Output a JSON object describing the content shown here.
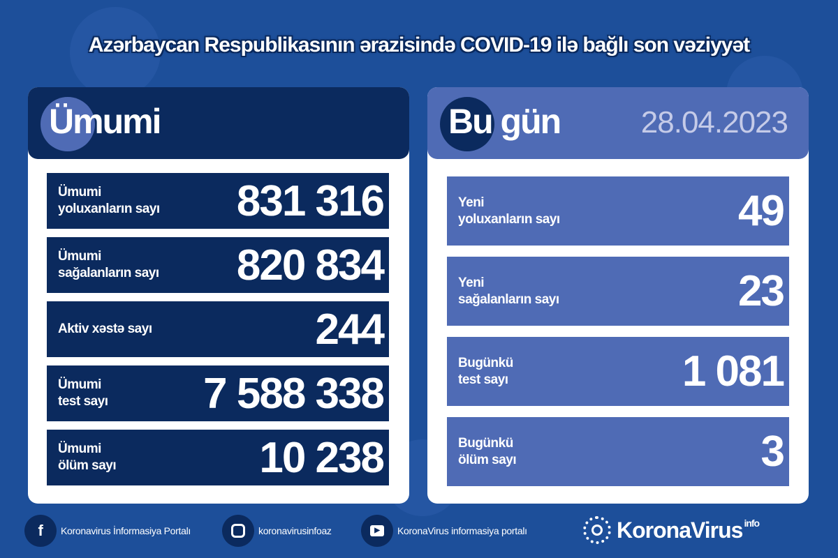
{
  "title": "Azərbaycan Respublikasının ərazisində COVID-19 ilə bağlı son vəziyyət",
  "colors": {
    "background": "#1d4f9a",
    "navy": "#0b2a5e",
    "accent": "#4f6bb5",
    "date": "#c5cbe8"
  },
  "total": {
    "heading": "Ümumi",
    "rows": [
      {
        "label1": "Ümumi",
        "label2": "yoluxanların sayı",
        "value": "831 316"
      },
      {
        "label1": "Ümumi",
        "label2": "sağalanların sayı",
        "value": "820 834"
      },
      {
        "label1": "Aktiv xəstə sayı",
        "label2": "",
        "value": "244"
      },
      {
        "label1": "Ümumi",
        "label2": "test sayı",
        "value": "7 588 338"
      },
      {
        "label1": "Ümumi",
        "label2": "ölüm sayı",
        "value": "10 238"
      }
    ]
  },
  "today": {
    "heading": "Bu gün",
    "date": "28.04.2023",
    "rows": [
      {
        "label1": "Yeni",
        "label2": "yoluxanların sayı",
        "value": "49"
      },
      {
        "label1": "Yeni",
        "label2": "sağalanların sayı",
        "value": "23"
      },
      {
        "label1": "Bugünkü",
        "label2": "test sayı",
        "value": "1 081"
      },
      {
        "label1": "Bugünkü",
        "label2": "ölüm sayı",
        "value": "3"
      }
    ]
  },
  "footer": {
    "facebook": "Koronavirus İnformasiya Portalı",
    "instagram": "koronavirusinfoaz",
    "youtube": "KoronaVirus informasiya portalı",
    "icons": [
      "facebook-icon",
      "instagram-icon",
      "youtube-icon"
    ]
  },
  "logo": {
    "name": "KoronaVirus",
    "sup": "info"
  }
}
